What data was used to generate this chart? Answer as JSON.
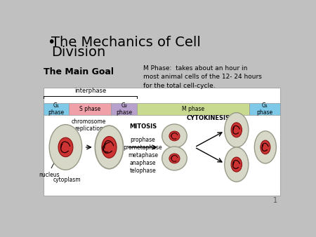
{
  "background_color": "#c0c0c0",
  "title_line1": "The Mechanics of Cell",
  "title_line2": "Division",
  "title_bullet": "•",
  "title_fontsize": 14,
  "title_color": "#000000",
  "main_goal_text": "The Main Goal",
  "main_goal_fontsize": 9,
  "note_text": "M Phase:  takes about an hour in\nmost animal cells of the 12- 24 hours\nfor the total cell-cycle.",
  "note_fontsize": 6.5,
  "page_number": "1",
  "interphase_label": "interphase",
  "phases": [
    {
      "label": "G₁\nphase",
      "color": "#7ec8e8",
      "xstart": 0.0,
      "xend": 0.105
    },
    {
      "label": "S phase",
      "color": "#f0a0a8",
      "xstart": 0.105,
      "xend": 0.285
    },
    {
      "label": "G₂\nphase",
      "color": "#b8a0cc",
      "xstart": 0.285,
      "xend": 0.395
    },
    {
      "label": "M phase",
      "color": "#c8d990",
      "xstart": 0.395,
      "xend": 0.87
    },
    {
      "label": "G₁\nphase",
      "color": "#7ec8e8",
      "xstart": 0.87,
      "xend": 1.0
    }
  ],
  "mitosis_steps": "MITOSIS\nprophase\nprometaphase\nmetaphase\nanaphase\ntelophase",
  "cytokinesis_label": "CYTOKINESIS",
  "cell_outer_color": "#d8d8c8",
  "cell_edge_color": "#999988",
  "nucleus_color": "#cc3333",
  "nucleus_edge_color": "#881111"
}
